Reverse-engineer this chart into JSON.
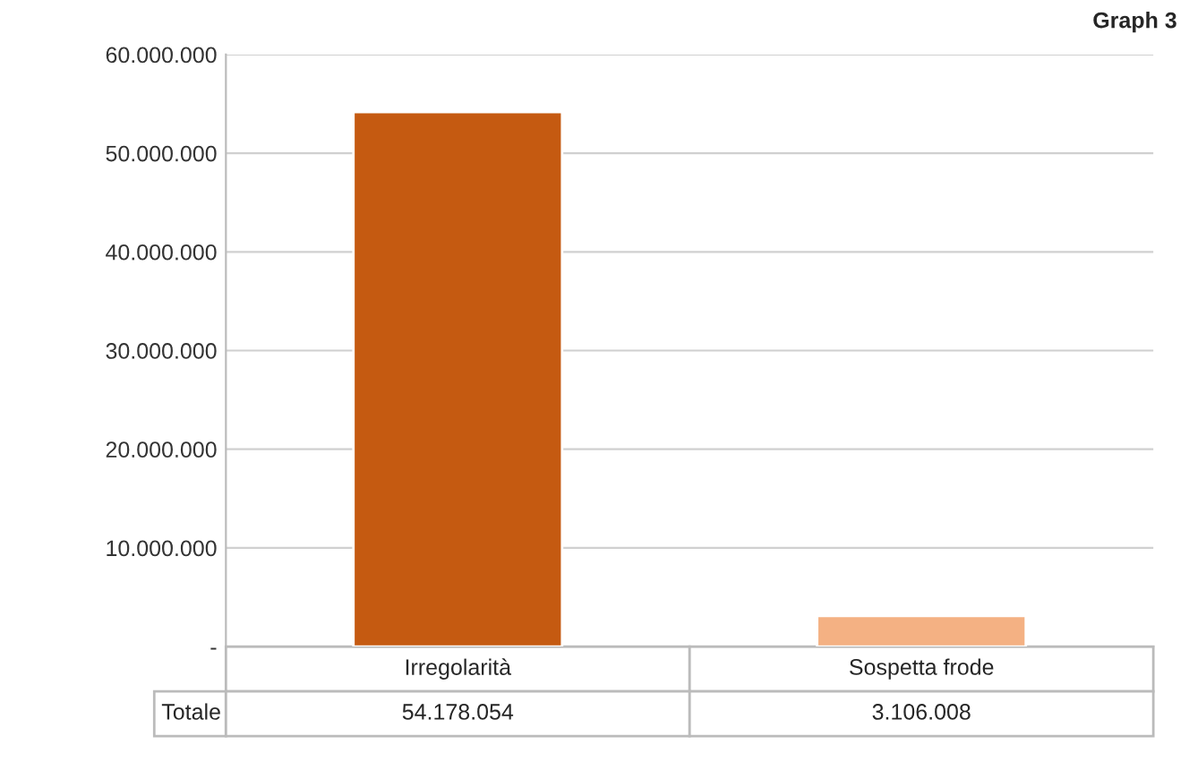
{
  "chart_data": {
    "type": "bar",
    "title": "Graph 3",
    "categories": [
      "Irregolarità",
      "Sospetta frode"
    ],
    "series": [
      {
        "name": "Totale",
        "colors": [
          "#c55a11",
          "#f4b183"
        ],
        "values": [
          54178054,
          3106008
        ],
        "value_labels": [
          "54.178.054",
          "3.106.008"
        ]
      }
    ],
    "ylim": [
      0,
      60000000
    ],
    "yticks": [
      {
        "value": 0,
        "label": "-"
      },
      {
        "value": 10000000,
        "label": "10.000.000"
      },
      {
        "value": 20000000,
        "label": "20.000.000"
      },
      {
        "value": 30000000,
        "label": "30.000.000"
      },
      {
        "value": 40000000,
        "label": "40.000.000"
      },
      {
        "value": 50000000,
        "label": "50.000.000"
      },
      {
        "value": 60000000,
        "label": "60.000.000"
      }
    ],
    "grid": "y"
  }
}
